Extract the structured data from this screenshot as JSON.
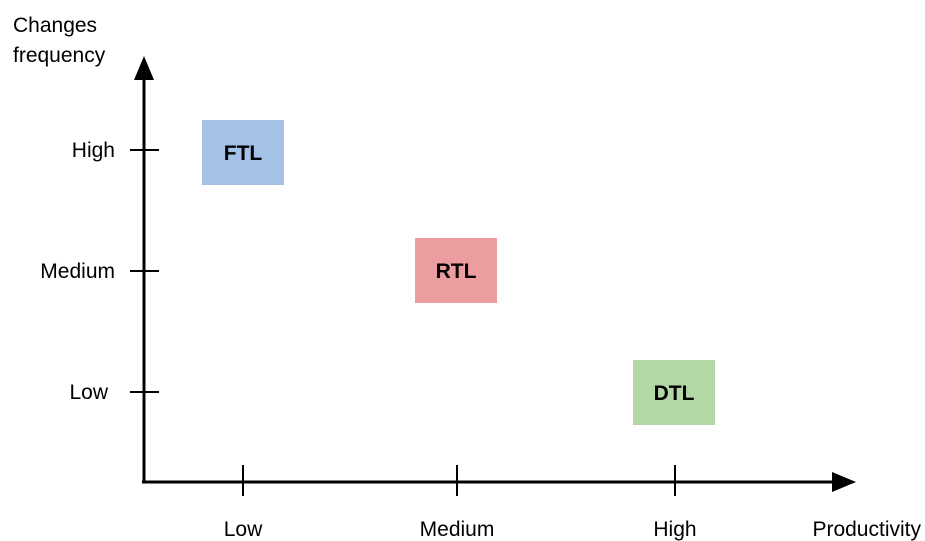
{
  "y_axis": {
    "title_lines": [
      "Changes",
      "frequency"
    ],
    "ticks": [
      "High",
      "Medium",
      "Low"
    ]
  },
  "x_axis": {
    "title": "Productivity",
    "ticks": [
      "Low",
      "Medium",
      "High"
    ]
  },
  "boxes": [
    {
      "label": "FTL",
      "x_level": "Low",
      "y_level": "High",
      "color": "#a4c2e8"
    },
    {
      "label": "RTL",
      "x_level": "Medium",
      "y_level": "Medium",
      "color": "#eb9d9f"
    },
    {
      "label": "DTL",
      "x_level": "High",
      "y_level": "Low",
      "color": "#b4d7a6"
    }
  ],
  "colors": {
    "axis": "#000000",
    "background": "#ffffff"
  }
}
